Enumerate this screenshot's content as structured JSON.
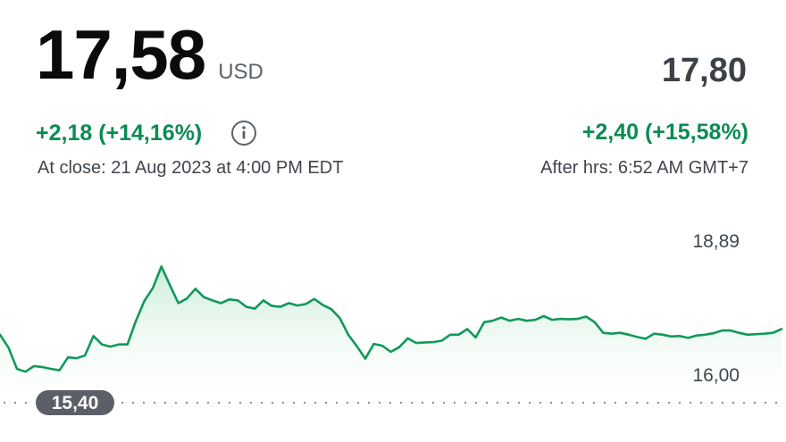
{
  "quote": {
    "price": "17,58",
    "currency": "USD",
    "change": "+2,18 (+14,16%)",
    "close_time": "At close: 21 Aug 2023 at 4:00 PM EDT"
  },
  "after_hours": {
    "price": "17,80",
    "change": "+2,40 (+15,58%)",
    "time": "After hrs: 6:52 AM GMT+7"
  },
  "icons": {
    "info": "info-icon"
  },
  "colors": {
    "up_green": "#0a8c52",
    "line": "#11995b",
    "fill": "#d8f2e2",
    "badge": "#5b6068"
  },
  "chart_data": {
    "type": "area",
    "y_high_label": "18,89",
    "y_low_label": "16,00",
    "previous_close_label": "15,40",
    "previous_close": 15.4,
    "ylim": [
      15.4,
      18.89
    ],
    "grid": false,
    "values": [
      16.87,
      16.59,
      16.13,
      16.07,
      16.19,
      16.17,
      16.13,
      16.1,
      16.38,
      16.36,
      16.42,
      16.84,
      16.66,
      16.61,
      16.66,
      16.66,
      17.17,
      17.6,
      17.88,
      18.34,
      17.94,
      17.55,
      17.65,
      17.86,
      17.68,
      17.61,
      17.55,
      17.63,
      17.61,
      17.47,
      17.43,
      17.61,
      17.49,
      17.47,
      17.55,
      17.5,
      17.53,
      17.64,
      17.51,
      17.42,
      17.23,
      16.87,
      16.62,
      16.35,
      16.67,
      16.63,
      16.5,
      16.6,
      16.79,
      16.69,
      16.7,
      16.71,
      16.74,
      16.87,
      16.87,
      16.99,
      16.81,
      17.14,
      17.17,
      17.24,
      17.17,
      17.21,
      17.17,
      17.19,
      17.27,
      17.19,
      17.21,
      17.2,
      17.21,
      17.26,
      17.14,
      16.91,
      16.89,
      16.91,
      16.87,
      16.82,
      16.78,
      16.89,
      16.87,
      16.83,
      16.84,
      16.8,
      16.85,
      16.87,
      16.9,
      16.96,
      16.96,
      16.91,
      16.87,
      16.88,
      16.89,
      16.91,
      16.99
    ]
  }
}
